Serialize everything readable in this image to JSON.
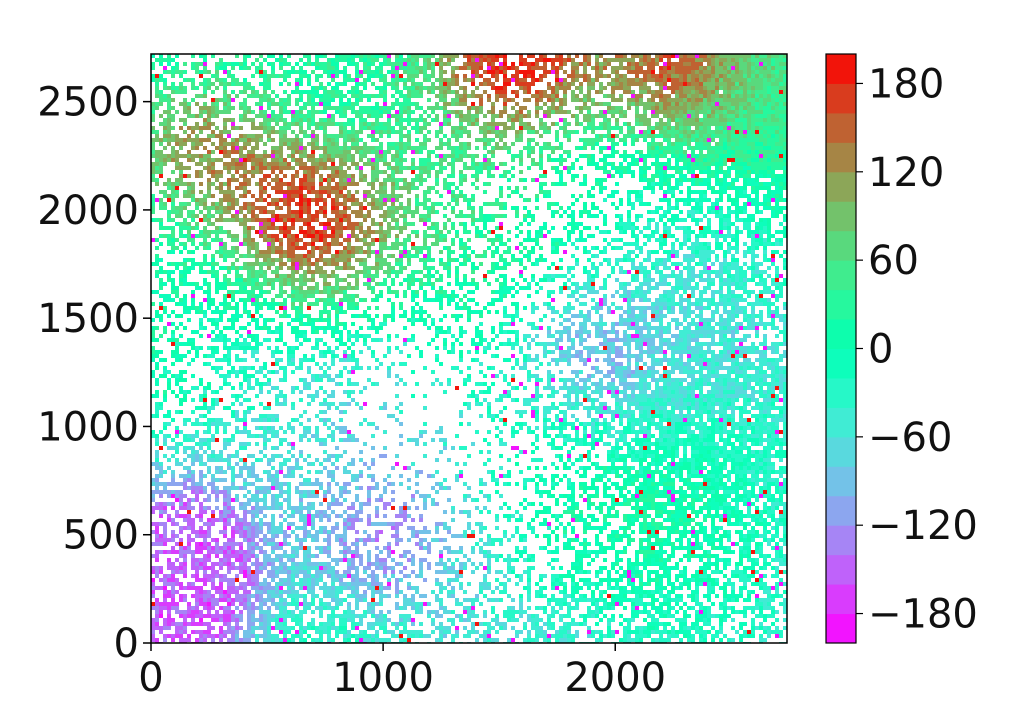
{
  "chart_data": [
    {
      "type": "heatmap",
      "title": "",
      "xlabel": "",
      "ylabel": "",
      "xlim": [
        0,
        2740
      ],
      "ylim": [
        0,
        2720
      ],
      "x_ticks": [
        0,
        1000,
        2000
      ],
      "x_tick_labels": [
        "0",
        "1000",
        "2000"
      ],
      "y_ticks": [
        0,
        500,
        1000,
        1500,
        2000,
        2500
      ],
      "y_tick_labels": [
        "0",
        "500",
        "1000",
        "1500",
        "2000",
        "2500"
      ],
      "grid": false,
      "colormap": "rainbow",
      "colorbar": {
        "range": [
          -200,
          200
        ],
        "levels": 20,
        "ticks": [
          -180,
          -120,
          -60,
          0,
          60,
          120,
          180
        ],
        "tick_labels": [
          "−180",
          "−120",
          "−60",
          "0",
          "60",
          "120",
          "180"
        ]
      },
      "missing_value_color": "#ffffff",
      "coverage_approx": 0.55,
      "regions": [
        {
          "description": "high positive cluster",
          "x": 700,
          "y": 1950,
          "value": 170
        },
        {
          "description": "positive band near top-left",
          "x": 200,
          "y": 2300,
          "value": 110
        },
        {
          "description": "positive patch top edge",
          "x": 1550,
          "y": 2680,
          "value": 180
        },
        {
          "description": "positive patch top right",
          "x": 2250,
          "y": 2680,
          "value": 140
        },
        {
          "description": "negative cluster bottom-left",
          "x": 120,
          "y": 120,
          "value": -160
        },
        {
          "description": "negative cluster",
          "x": 150,
          "y": 500,
          "value": -140
        },
        {
          "description": "negative cluster",
          "x": 1000,
          "y": 500,
          "value": -120
        },
        {
          "description": "negative streak",
          "x": 1950,
          "y": 1350,
          "value": -90
        }
      ]
    }
  ]
}
